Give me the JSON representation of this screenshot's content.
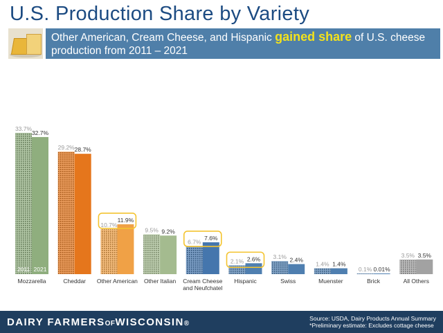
{
  "page": {
    "title": "U.S. Production Share by Variety",
    "banner_before": "Other American, Cream Cheese, and Hispanic ",
    "banner_highlight": "gained share",
    "banner_after": " of U.S. cheese production from 2011 – 2021",
    "brand_main": "DAIRY FARMERS",
    "brand_of": "OF",
    "brand_end": "WISCONSIN",
    "brand_mark": "®",
    "source": "Source: USDA, Dairy Products Annual Summary",
    "footnote": "*Preliminary estimate: Excludes cottage cheese"
  },
  "chart_data": {
    "type": "bar",
    "title": "",
    "xlabel": "",
    "ylabel": "",
    "ylim": [
      0,
      35
    ],
    "grid": false,
    "legend": "inside first bars (bottom)",
    "categories": [
      "Mozzarella",
      "Cheddar",
      "Other American",
      "Other Italian",
      "Cream Cheese and Neufchatel",
      "Hispanic",
      "Swiss",
      "Muenster",
      "Brick",
      "All Others"
    ],
    "category_lines": [
      [
        "Mozzarella"
      ],
      [
        "Cheddar"
      ],
      [
        "Other American"
      ],
      [
        "Other Italian"
      ],
      [
        "Cream Cheese",
        "and Neufchatel"
      ],
      [
        "Hispanic"
      ],
      [
        "Swiss"
      ],
      [
        "Muenster"
      ],
      [
        "Brick"
      ],
      [
        "All Others"
      ]
    ],
    "series": [
      {
        "name": "2011",
        "values": [
          33.7,
          29.2,
          10.7,
          9.5,
          6.7,
          2.1,
          3.1,
          1.4,
          0.1,
          3.5
        ],
        "labels": [
          "33.7%",
          "29.2%",
          "10.7%",
          "9.5%",
          "6.7%",
          "2.1%",
          "3.1%",
          "1.4%",
          "0.1%",
          "3.5%"
        ]
      },
      {
        "name": "2021",
        "values": [
          32.7,
          28.7,
          11.9,
          9.2,
          7.6,
          2.6,
          2.4,
          1.4,
          0.01,
          3.5
        ],
        "labels": [
          "32.7%",
          "28.7%",
          "11.9%",
          "9.2%",
          "7.6%",
          "2.6%",
          "2.4%",
          "1.4%",
          "0.01%",
          "3.5%"
        ]
      }
    ],
    "colors": [
      "#8fae7e",
      "#e5761c",
      "#f0a146",
      "#a4bb8f",
      "#4576ad",
      "#4f7fb0",
      "#4f7fb0",
      "#4f7fb0",
      "#4f7fb0",
      "#a2a2a2"
    ],
    "highlighted": [
      "Other American",
      "Cream Cheese and Neufchatel",
      "Hispanic"
    ],
    "highlight_color": "#f4c430"
  }
}
